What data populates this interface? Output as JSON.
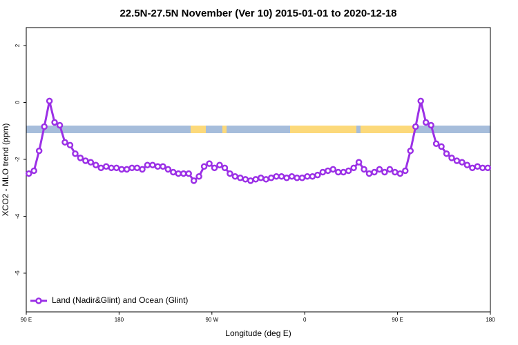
{
  "chart_data": {
    "type": "line",
    "title": "22.5N-27.5N November (Ver 10)   2015-01-01 to 2020-12-18",
    "xlabel": "Longitude (deg E)",
    "ylabel": "XCO2 - MLO trend (ppm)",
    "x": [
      92.5,
      97.5,
      102.5,
      107.5,
      112.5,
      117.5,
      122.5,
      127.5,
      132.5,
      137.5,
      142.5,
      147.5,
      152.5,
      157.5,
      162.5,
      167.5,
      172.5,
      177.5,
      182.5,
      187.5,
      192.5,
      197.5,
      202.5,
      207.5,
      212.5,
      217.5,
      222.5,
      227.5,
      232.5,
      237.5,
      242.5,
      247.5,
      252.5,
      257.5,
      262.5,
      267.5,
      272.5,
      277.5,
      282.5,
      287.5,
      292.5,
      297.5,
      302.5,
      307.5,
      312.5,
      317.5,
      322.5,
      327.5,
      332.5,
      337.5,
      342.5,
      347.5,
      352.5,
      357.5,
      362.5,
      367.5,
      372.5,
      377.5,
      382.5,
      387.5,
      392.5,
      397.5,
      402.5,
      407.5,
      412.5,
      417.5,
      422.5,
      427.5,
      432.5,
      437.5,
      442.5,
      447.5,
      452.5,
      457.5,
      462.5,
      467.5,
      472.5,
      477.5,
      482.5,
      487.5,
      492.5,
      497.5,
      502.5,
      507.5,
      512.5,
      517.5,
      522.5,
      527.5,
      532.5,
      537.5
    ],
    "series": [
      {
        "name": "Land (Nadir&Glint) and Ocean (Glint)",
        "color": "#9b30e6",
        "values": [
          -2.5,
          -2.4,
          -1.7,
          -0.85,
          0.05,
          -0.7,
          -0.8,
          -1.4,
          -1.5,
          -1.8,
          -1.95,
          -2.05,
          -2.1,
          -2.2,
          -2.3,
          -2.25,
          -2.3,
          -2.3,
          -2.35,
          -2.35,
          -2.3,
          -2.3,
          -2.35,
          -2.2,
          -2.2,
          -2.25,
          -2.25,
          -2.35,
          -2.45,
          -2.5,
          -2.5,
          -2.5,
          -2.75,
          -2.6,
          -2.25,
          -2.15,
          -2.3,
          -2.2,
          -2.3,
          -2.5,
          -2.6,
          -2.65,
          -2.7,
          -2.75,
          -2.7,
          -2.65,
          -2.7,
          -2.65,
          -2.6,
          -2.6,
          -2.65,
          -2.6,
          -2.65,
          -2.65,
          -2.6,
          -2.6,
          -2.55,
          -2.45,
          -2.4,
          -2.35,
          -2.45,
          -2.45,
          -2.4,
          -2.3,
          -2.1,
          -2.35,
          -2.5,
          -2.45,
          -2.35,
          -2.45,
          -2.35,
          -2.45,
          -2.5,
          -2.4,
          -1.7,
          -0.85,
          0.05,
          -0.7,
          -0.8,
          -1.45,
          -1.55,
          -1.8,
          -1.95,
          -2.05,
          -2.1,
          -2.2,
          -2.3,
          -2.25,
          -2.3,
          -2.3
        ]
      }
    ],
    "xlim": [
      90,
      540
    ],
    "xticks": [
      {
        "value": 90,
        "label": "90 E"
      },
      180,
      {
        "value": 270,
        "label": "90 W"
      },
      {
        "value": 360,
        "label": "0"
      },
      {
        "value": 450,
        "label": "90 E"
      },
      {
        "value": 540,
        "label": "180"
      }
    ],
    "ylim": [
      -7.36,
      2.63
    ],
    "yticks": [
      -6,
      -4,
      -2,
      0,
      2
    ],
    "legend": "bottom-left"
  }
}
